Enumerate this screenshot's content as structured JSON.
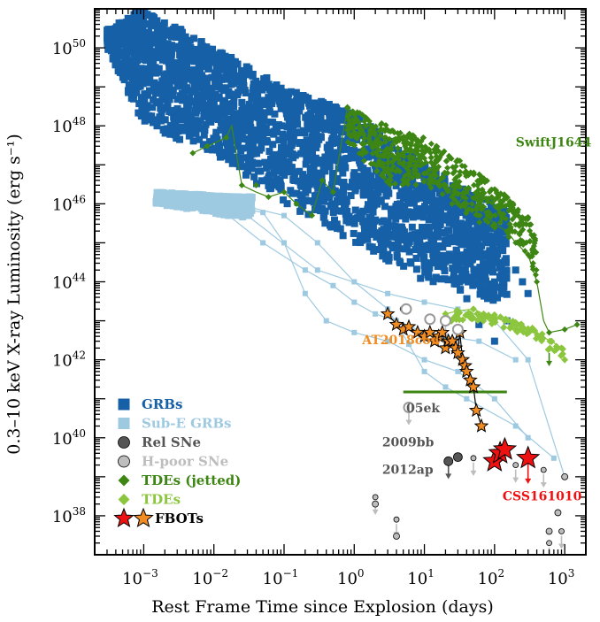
{
  "chart_data": {
    "type": "scatter",
    "xlabel": "Rest Frame Time since Explosion (days)",
    "ylabel": "0.3–10 keV X-ray Luminosity (erg s⁻¹)",
    "xscale": "log",
    "yscale": "log",
    "xlim": [
      0.0002,
      2000
    ],
    "ylim": [
      1e+37,
      1e+51
    ],
    "x_ticks": [
      {
        "value": 0.001,
        "base": "10",
        "exp": "−3"
      },
      {
        "value": 0.01,
        "base": "10",
        "exp": "−2"
      },
      {
        "value": 0.1,
        "base": "10",
        "exp": "−1"
      },
      {
        "value": 1,
        "base": "10",
        "exp": "0"
      },
      {
        "value": 10,
        "base": "10",
        "exp": "1"
      },
      {
        "value": 100,
        "base": "10",
        "exp": "2"
      },
      {
        "value": 1000,
        "base": "10",
        "exp": "3"
      }
    ],
    "y_ticks": [
      {
        "value": 1e+38,
        "base": "10",
        "exp": "38"
      },
      {
        "value": 1e+40,
        "base": "10",
        "exp": "40"
      },
      {
        "value": 1e+42,
        "base": "10",
        "exp": "42"
      },
      {
        "value": 1e+44,
        "base": "10",
        "exp": "44"
      },
      {
        "value": 1e+46,
        "base": "10",
        "exp": "46"
      },
      {
        "value": 1e+48,
        "base": "10",
        "exp": "48"
      },
      {
        "value": 1e+50,
        "base": "10",
        "exp": "50"
      }
    ],
    "legend_position": "bottom-left",
    "legend": [
      {
        "label": "GRBs",
        "marker": "square",
        "color": "#1660a8"
      },
      {
        "label": "Sub-E GRBs",
        "marker": "square",
        "color": "#9ecae1"
      },
      {
        "label": "Rel SNe",
        "marker": "circle",
        "color": "#555555"
      },
      {
        "label": "H-poor SNe",
        "marker": "circle",
        "color": "#bdbdbd"
      },
      {
        "label": "TDEs (jetted)",
        "marker": "diamond",
        "color": "#3e8614"
      },
      {
        "label": "TDEs",
        "marker": "diamond",
        "color": "#8cc63f"
      },
      {
        "label": "FBOTs",
        "marker": "star",
        "colors": [
          "#ee1111",
          "#f08c22"
        ]
      }
    ],
    "annotations": [
      {
        "text": "SwiftJ1644",
        "x": 200,
        "y": 3e+47,
        "color": "#3e8614"
      },
      {
        "text": "AT2018cow",
        "x": 1.3,
        "y": 2.5e+42,
        "color": "#f08c22"
      },
      {
        "text": "05ek",
        "x": 5.5,
        "y": 4.5e+40,
        "color": "#555555"
      },
      {
        "text": "2009bb",
        "x": 2.5,
        "y": 6e+39,
        "color": "#555555"
      },
      {
        "text": "2012ap",
        "x": 2.5,
        "y": 1.2e+39,
        "color": "#555555"
      },
      {
        "text": "CSS161010",
        "x": 130,
        "y": 2.5e+38,
        "color": "#ee1111"
      }
    ],
    "series": [
      {
        "name": "GRBs",
        "color": "#1660a8",
        "marker": "square",
        "band_upper": [
          [
            0.0003,
            3e+50
          ],
          [
            0.001,
            1e+51
          ],
          [
            0.01,
            1e+50
          ],
          [
            0.1,
            1e+49
          ],
          [
            1,
            2e+48
          ],
          [
            10,
            1e+47
          ],
          [
            100,
            1e+46
          ],
          [
            300,
            4e+45
          ]
        ],
        "band_lower": [
          [
            0.0003,
            1e+50
          ],
          [
            0.001,
            1e+48
          ],
          [
            0.01,
            2e+47
          ],
          [
            0.1,
            1e+46
          ],
          [
            1,
            1e+45
          ],
          [
            10,
            1e+44
          ],
          [
            50,
            3e+43
          ],
          [
            150,
            2e+43
          ]
        ],
        "scatter": [
          [
            200,
            2e+44
          ],
          [
            300,
            5e+43
          ],
          [
            150,
            1e+43
          ],
          [
            100,
            3e+42
          ],
          [
            60,
            8e+42
          ],
          [
            250,
            1e+44
          ],
          [
            80,
            5e+43
          ]
        ]
      },
      {
        "name": "Sub-E GRBs",
        "color": "#9ecae1",
        "marker": "square",
        "band_upper": [
          [
            0.0015,
            2e+46
          ],
          [
            0.035,
            1.5e+46
          ]
        ],
        "band_lower": [
          [
            0.0015,
            1e+46
          ],
          [
            0.035,
            4e+45
          ]
        ],
        "lines": [
          [
            [
              0.002,
              1e+46
            ],
            [
              0.03,
              5e+45
            ],
            [
              0.3,
              2e+44
            ],
            [
              3,
              5e+43
            ],
            [
              10,
              3e+43
            ],
            [
              30,
              2e+43
            ],
            [
              100,
              1e+43
            ],
            [
              300,
              1e+42
            ],
            [
              1000,
              1e+39
            ]
          ],
          [
            [
              0.003,
              1.5e+46
            ],
            [
              0.05,
              6e+45
            ],
            [
              0.1,
              1e+45
            ],
            [
              0.2,
              5e+43
            ],
            [
              0.4,
              1e+43
            ],
            [
              1,
              5e+42
            ],
            [
              3,
              3e+42
            ],
            [
              10,
              1e+42
            ],
            [
              30,
              5e+41
            ],
            [
              100,
              1e+41
            ],
            [
              300,
              1e+40
            ]
          ],
          [
            [
              0.02,
              1e+46
            ],
            [
              0.1,
              5e+45
            ],
            [
              0.3,
              1e+45
            ],
            [
              1,
              1e+44
            ],
            [
              3,
              2e+43
            ],
            [
              6,
              2.5e+42
            ],
            [
              10,
              5e+41
            ],
            [
              20,
              2e+41
            ],
            [
              40,
              1e+41
            ],
            [
              200,
              2e+40
            ],
            [
              700,
              3e+39
            ]
          ],
          [
            [
              0.01,
              1e+46
            ],
            [
              0.05,
              1e+45
            ],
            [
              0.2,
              2e+44
            ],
            [
              0.5,
              8e+43
            ],
            [
              1,
              3e+43
            ],
            [
              2,
              1.5e+43
            ],
            [
              4,
              1e+43
            ],
            [
              10,
              5e+42
            ],
            [
              20,
              4e+42
            ],
            [
              60,
              3e+42
            ],
            [
              200,
              1e+42
            ]
          ]
        ]
      },
      {
        "name": "Rel SNe",
        "color": "#555555",
        "marker": "circle",
        "points": [
          [
            22,
            2.5e+39
          ],
          [
            30,
            3.2e+39
          ]
        ],
        "upper_limits": [
          [
            22,
            2.5e+39
          ]
        ]
      },
      {
        "name": "H-poor SNe",
        "color": "#bdbdbd",
        "marker": "circle",
        "points": [
          [
            5,
            2e+43
          ],
          [
            12,
            1e+43
          ],
          [
            20,
            1e+43
          ],
          [
            30,
            6e+42
          ],
          [
            6,
            6e+40
          ],
          [
            1000,
            1e+39
          ],
          [
            2,
            2e+38
          ],
          [
            4,
            3e+37
          ],
          [
            600,
            4e+37
          ],
          [
            800,
            1.2e+38
          ]
        ],
        "open_points": [
          [
            5.5,
            2e+43
          ],
          [
            12,
            1.1e+43
          ],
          [
            20,
            1e+43
          ],
          [
            30,
            6e+42
          ],
          [
            6,
            6e+40
          ]
        ],
        "upper_limits": [
          [
            12,
            1.1e+43
          ],
          [
            20,
            1e+43
          ],
          [
            30,
            6e+42
          ],
          [
            6,
            6e+40
          ],
          [
            50,
            3e+39
          ],
          [
            200,
            2e+39
          ],
          [
            500,
            1.5e+39
          ],
          [
            2,
            3e+38
          ],
          [
            4,
            8e+37
          ],
          [
            600,
            2e+37
          ],
          [
            900,
            4e+37
          ]
        ]
      },
      {
        "name": "TDEs (jetted)",
        "color": "#3e8614",
        "marker": "diamond",
        "points": [
          [
            0.005,
            2e+47
          ],
          [
            0.008,
            3e+47
          ],
          [
            0.015,
            5e+47
          ],
          [
            0.025,
            3e+46
          ],
          [
            0.04,
            3e+46
          ],
          [
            0.06,
            1.5e+46
          ],
          [
            0.1,
            2e+46
          ],
          [
            0.15,
            1e+46
          ],
          [
            0.25,
            5e+45
          ],
          [
            0.35,
            4e+46
          ],
          [
            0.5,
            2e+46
          ],
          [
            0.8,
            3e+48
          ],
          [
            1.2,
            1e+48
          ],
          [
            2,
            3e+47
          ],
          [
            3,
            2e+47
          ],
          [
            5,
            1e+47
          ],
          [
            8,
            5e+46
          ],
          [
            12,
            4e+46
          ],
          [
            20,
            3e+46
          ],
          [
            30,
            1e+46
          ],
          [
            40,
            2e+46
          ],
          [
            60,
            1e+46
          ],
          [
            80,
            5e+45
          ],
          [
            100,
            3e+45
          ],
          [
            150,
            2e+45
          ],
          [
            200,
            1e+45
          ],
          [
            300,
            5e+44
          ],
          [
            400,
            1e+44
          ],
          [
            600,
            5e+42
          ],
          [
            1000,
            6e+42
          ],
          [
            1500,
            8e+42
          ]
        ],
        "lines": [
          [
            [
              0.005,
              2e+47
            ],
            [
              0.008,
              3e+47
            ],
            [
              0.015,
              5e+47
            ],
            [
              0.018,
              1e+48
            ],
            [
              0.02,
              3e+47
            ],
            [
              0.025,
              3e+46
            ],
            [
              0.04,
              2e+46
            ],
            [
              0.06,
              1.5e+46
            ],
            [
              0.1,
              2e+46
            ],
            [
              0.15,
              1e+46
            ],
            [
              0.25,
              5e+45
            ],
            [
              0.35,
              4e+46
            ],
            [
              0.5,
              2e+46
            ],
            [
              0.8,
              3e+48
            ],
            [
              1,
              1e+48
            ],
            [
              2,
              3e+47
            ],
            [
              3,
              2e+47
            ],
            [
              5,
              1e+47
            ],
            [
              8,
              5e+46
            ],
            [
              12,
              4e+46
            ],
            [
              20,
              3e+46
            ],
            [
              30,
              1e+46
            ],
            [
              40,
              2e+46
            ],
            [
              60,
              1e+46
            ],
            [
              80,
              5e+45
            ],
            [
              100,
              3e+45
            ],
            [
              150,
              2e+45
            ],
            [
              200,
              1e+45
            ],
            [
              300,
              5e+44
            ],
            [
              400,
              1e+44
            ],
            [
              500,
              1e+43
            ],
            [
              600,
              5e+42
            ],
            [
              1000,
              6e+42
            ],
            [
              1500,
              8e+42
            ]
          ]
        ],
        "upper_limits": [
          [
            600,
            1.5e+42
          ]
        ]
      },
      {
        "name": "TDEs",
        "color": "#8cc63f",
        "marker": "diamond",
        "points": [
          [
            20,
            1.5e+43
          ],
          [
            30,
            1.8e+43
          ],
          [
            50,
            2e+43
          ],
          [
            70,
            1.5e+43
          ],
          [
            100,
            1.2e+43
          ],
          [
            140,
            1e+43
          ],
          [
            200,
            8e+42
          ],
          [
            300,
            6e+42
          ],
          [
            450,
            4e+42
          ],
          [
            650,
            3e+42
          ],
          [
            900,
            2e+42
          ],
          [
            1000,
            1e+42
          ]
        ],
        "lines": [
          [
            [
              20,
              1.5e+43
            ],
            [
              30,
              1.8e+43
            ],
            [
              50,
              2e+43
            ],
            [
              70,
              1.5e+43
            ],
            [
              100,
              1.2e+43
            ],
            [
              140,
              1e+43
            ],
            [
              200,
              8e+42
            ],
            [
              300,
              6e+42
            ],
            [
              450,
              4e+42
            ],
            [
              650,
              3e+42
            ],
            [
              900,
              2e+42
            ],
            [
              1000,
              1e+42
            ]
          ]
        ]
      },
      {
        "name": "FBOTs (AT2018cow)",
        "color": "#f08c22",
        "marker": "star",
        "points": [
          [
            3,
            1.5e+43
          ],
          [
            4,
            8e+42
          ],
          [
            5,
            6e+42
          ],
          [
            6,
            7e+42
          ],
          [
            8,
            5e+42
          ],
          [
            10,
            4e+42
          ],
          [
            12,
            5e+42
          ],
          [
            14,
            3e+42
          ],
          [
            16,
            4e+42
          ],
          [
            18,
            5e+42
          ],
          [
            20,
            2e+42
          ],
          [
            22,
            3e+42
          ],
          [
            25,
            3e+42
          ],
          [
            28,
            2e+42
          ],
          [
            30,
            1.5e+42
          ],
          [
            32,
            5e+42
          ],
          [
            35,
            1e+42
          ],
          [
            38,
            7e+41
          ],
          [
            40,
            5e+41
          ],
          [
            45,
            3e+41
          ],
          [
            50,
            2e+41
          ],
          [
            55,
            5e+40
          ],
          [
            65,
            2e+40
          ]
        ],
        "line": {
          "x": [
            5,
            150
          ],
          "y": 1.5e+41,
          "color": "#3e8614"
        }
      },
      {
        "name": "FBOTs (CSS161010)",
        "color": "#ee1111",
        "marker": "star",
        "points": [
          [
            100,
            2.5e+39
          ],
          [
            120,
            4e+39
          ],
          [
            140,
            5e+39
          ],
          [
            300,
            3e+39
          ]
        ],
        "upper_limits": [
          [
            300,
            3e+39
          ]
        ]
      }
    ]
  }
}
